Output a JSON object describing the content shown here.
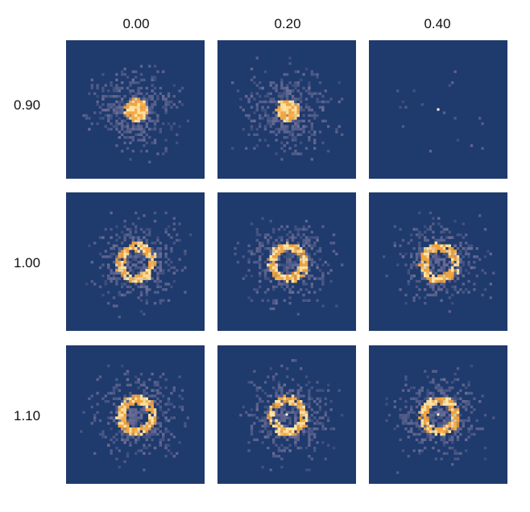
{
  "column_labels": [
    "0.00",
    "0.20",
    "0.40"
  ],
  "row_labels": [
    "0.90",
    "1.00",
    "1.10"
  ],
  "colors": {
    "background": "#1f3a6d",
    "scatter": "#6d6f97",
    "ring_warm": "#f2a23c",
    "ring_hot": "#ffe6a6",
    "center_dot": "#fff8d8"
  },
  "panels": [
    {
      "row": "0.90",
      "col": "0.00",
      "ring": "small-disk",
      "dot": false
    },
    {
      "row": "0.90",
      "col": "0.20",
      "ring": "small-disk",
      "dot": false
    },
    {
      "row": "0.90",
      "col": "0.40",
      "ring": "none",
      "dot": true
    },
    {
      "row": "1.00",
      "col": "0.00",
      "ring": "ring",
      "dot": false
    },
    {
      "row": "1.00",
      "col": "0.20",
      "ring": "ring",
      "dot": false
    },
    {
      "row": "1.00",
      "col": "0.40",
      "ring": "ring",
      "dot": false
    },
    {
      "row": "1.10",
      "col": "0.00",
      "ring": "ring",
      "dot": false
    },
    {
      "row": "1.10",
      "col": "0.20",
      "ring": "ring",
      "dot": true
    },
    {
      "row": "1.10",
      "col": "0.40",
      "ring": "ring",
      "dot": true
    }
  ]
}
